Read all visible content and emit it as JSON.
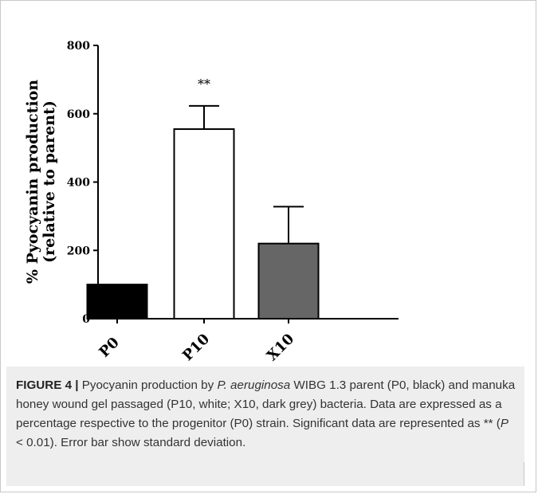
{
  "chart_data": {
    "type": "bar",
    "title": "",
    "xlabel": "",
    "ylabel": [
      "% Pyocyanin production",
      "(relative to parent)"
    ],
    "categories": [
      "P0",
      "P10",
      "X10"
    ],
    "values": [
      100,
      555,
      220
    ],
    "error": [
      0,
      68,
      108
    ],
    "bar_colors": [
      "#000000",
      "#ffffff",
      "#666666"
    ],
    "ylim": [
      0,
      800
    ],
    "yticks": [
      0,
      200,
      400,
      600,
      800
    ],
    "annotations": [
      {
        "category": "P10",
        "text": "**"
      }
    ],
    "grid": false,
    "legend": "none"
  },
  "caption": {
    "label": "FIGURE 4 |",
    "segments": [
      {
        "text": " Pyocyanin production by ",
        "italic": false
      },
      {
        "text": "P. aeruginosa",
        "italic": true
      },
      {
        "text": " WIBG 1.3 parent (P0, black) and manuka honey wound gel passaged (P10, white; X10, dark grey) bacteria. Data are expressed as a percentage respective to the progenitor (P0) strain. Significant data are represented as ** (",
        "italic": false
      },
      {
        "text": "P",
        "italic": true
      },
      {
        "text": " < 0.01). Error bar show standard deviation.",
        "italic": false
      }
    ]
  }
}
